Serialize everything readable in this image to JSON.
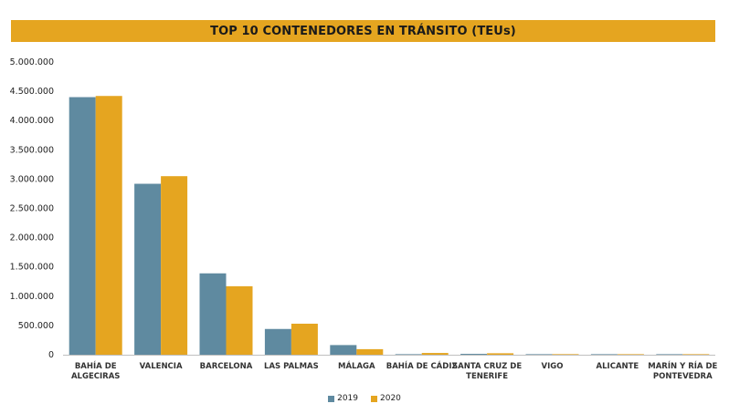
{
  "chart_data": {
    "type": "bar",
    "title": "TOP 10 CONTENEDORES EN TRÁNSITO (TEUs)",
    "xlabel": "",
    "ylabel": "",
    "ylim": [
      0,
      5000000
    ],
    "yticks": [
      0,
      500000,
      1000000,
      1500000,
      2000000,
      2500000,
      3000000,
      3500000,
      4000000,
      4500000,
      5000000
    ],
    "ytick_labels": [
      "0",
      "500.000",
      "1.000.000",
      "1.500.000",
      "2.000.000",
      "2.500.000",
      "3.000.000",
      "3.500.000",
      "4.000.000",
      "4.500.000",
      "5.000.000"
    ],
    "grid": false,
    "legend_position": "bottom",
    "categories": [
      [
        "BAHÍA DE",
        "ALGECIRAS"
      ],
      [
        "VALENCIA"
      ],
      [
        "BARCELONA"
      ],
      [
        "LAS PALMAS"
      ],
      [
        "MÁLAGA"
      ],
      [
        "BAHÍA DE CÁDIZ"
      ],
      [
        "SANTA CRUZ DE",
        "TENERIFE"
      ],
      [
        "VIGO"
      ],
      [
        "ALICANTE"
      ],
      [
        "MARÍN Y RÍA DE",
        "PONTEVEDRA"
      ]
    ],
    "series": [
      {
        "name": "2019",
        "color": "#5f8aa0",
        "values": [
          4400000,
          2920000,
          1390000,
          440000,
          165000,
          5000,
          15000,
          8000,
          2000,
          3000
        ]
      },
      {
        "name": "2020",
        "color": "#e5a520",
        "values": [
          4420000,
          3050000,
          1170000,
          530000,
          95000,
          30000,
          25000,
          10000,
          3000,
          4000
        ]
      }
    ]
  },
  "colors": {
    "title_bar": "#e5a520",
    "axis": "#bfbfbf"
  }
}
